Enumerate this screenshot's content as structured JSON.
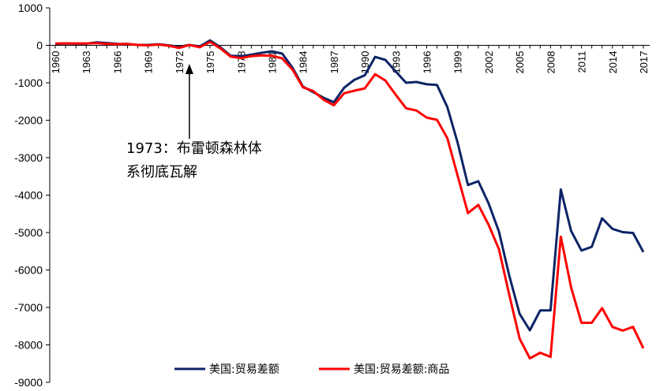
{
  "chart_data": {
    "type": "line",
    "title": "",
    "xlabel": "",
    "ylabel": "",
    "ylim": [
      -9000,
      1000
    ],
    "y_ticks": [
      "1000",
      "0",
      "-1000",
      "-2000",
      "-3000",
      "-4000",
      "-5000",
      "-6000",
      "-7000",
      "-8000",
      "-9000"
    ],
    "x_ticks": [
      "1960",
      "1963",
      "1966",
      "1969",
      "1972",
      "1975",
      "1978",
      "1981",
      "1984",
      "1987",
      "1990",
      "1993",
      "1996",
      "1999",
      "2002",
      "2005",
      "2008",
      "2011",
      "2014",
      "2017"
    ],
    "x": [
      1960,
      1961,
      1962,
      1963,
      1964,
      1965,
      1966,
      1967,
      1968,
      1969,
      1970,
      1971,
      1972,
      1973,
      1974,
      1975,
      1976,
      1977,
      1978,
      1979,
      1980,
      1981,
      1982,
      1983,
      1984,
      1985,
      1986,
      1987,
      1988,
      1989,
      1990,
      1991,
      1992,
      1993,
      1994,
      1995,
      1996,
      1997,
      1998,
      1999,
      2000,
      2001,
      2002,
      2003,
      2004,
      2005,
      2006,
      2007,
      2008,
      2009,
      2010,
      2011,
      2012,
      2013,
      2014,
      2015,
      2016,
      2017
    ],
    "series": [
      {
        "name": "美国:贸易差额",
        "color": "#0d2466",
        "values": [
          40,
          50,
          45,
          45,
          80,
          60,
          40,
          35,
          10,
          10,
          30,
          0,
          -40,
          10,
          -30,
          130,
          -50,
          -280,
          -290,
          -250,
          -200,
          -160,
          -220,
          -600,
          -1100,
          -1250,
          -1400,
          -1520,
          -1130,
          -920,
          -800,
          -310,
          -390,
          -700,
          -1000,
          -980,
          -1040,
          -1060,
          -1650,
          -2600,
          -3730,
          -3630,
          -4220,
          -4970,
          -6150,
          -7170,
          -7610,
          -7080,
          -7080,
          -3850,
          -4960,
          -5480,
          -5380,
          -4620,
          -4900,
          -4990,
          -5010,
          -5520
        ]
      },
      {
        "name": "美国:贸易差额:商品",
        "color": "#ff0000",
        "values": [
          50,
          50,
          50,
          50,
          60,
          40,
          30,
          35,
          10,
          0,
          20,
          -10,
          -70,
          10,
          -50,
          90,
          -80,
          -300,
          -340,
          -290,
          -270,
          -280,
          -350,
          -650,
          -1120,
          -1220,
          -1450,
          -1600,
          -1280,
          -1210,
          -1150,
          -770,
          -940,
          -1320,
          -1680,
          -1740,
          -1930,
          -1990,
          -2480,
          -3480,
          -4480,
          -4260,
          -4790,
          -5440,
          -6660,
          -7830,
          -8360,
          -8210,
          -8320,
          -5110,
          -6470,
          -7410,
          -7410,
          -7020,
          -7520,
          -7620,
          -7520,
          -8090
        ]
      }
    ],
    "annotation": {
      "line1": "1973：布雷顿森林体",
      "line2": "系彻底瓦解",
      "year": 1973
    },
    "grid": false,
    "legend_placement": "bottom"
  }
}
